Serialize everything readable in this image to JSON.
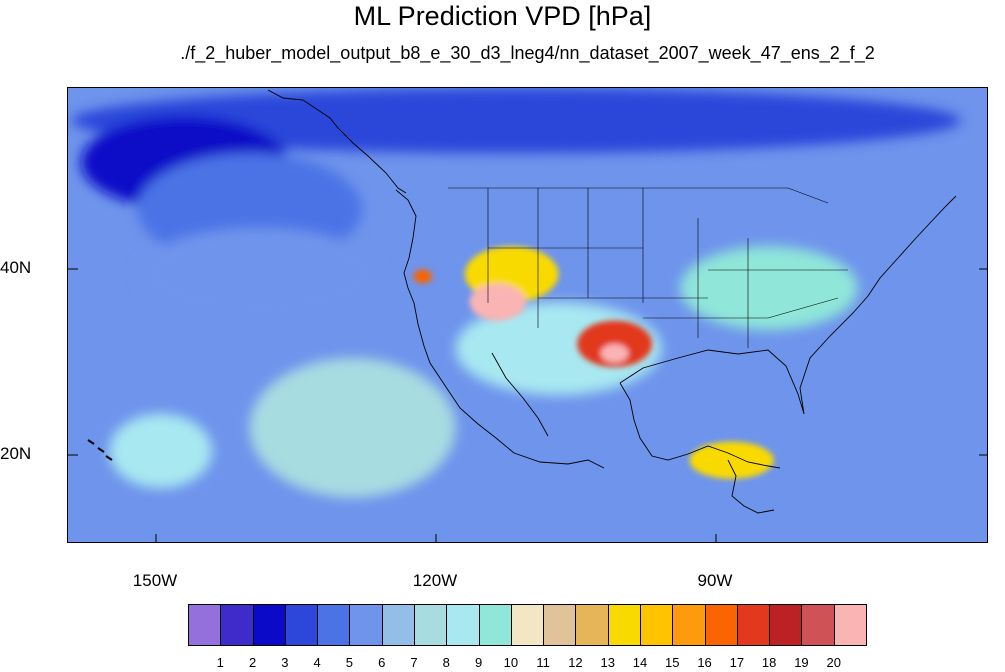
{
  "title": "ML Prediction VPD [hPa]",
  "subtitle": "./f_2_huber_model_output_b8_e_30_d3_lneg4/nn_dataset_2007_week_47_ens_2_f_2",
  "axes": {
    "lat_labels": [
      "40N",
      "20N"
    ],
    "lon_labels": [
      "150W",
      "120W",
      "90W"
    ]
  },
  "colorbar": {
    "labels": [
      "1",
      "2",
      "3",
      "4",
      "5",
      "6",
      "7",
      "8",
      "9",
      "10",
      "11",
      "12",
      "13",
      "14",
      "15",
      "16",
      "17",
      "18",
      "19",
      "20"
    ],
    "colors": [
      "#9370DB",
      "#3D2CC9",
      "#0A0AC8",
      "#2C47DA",
      "#4B73E6",
      "#6E94EC",
      "#92BEE8",
      "#A7DCE1",
      "#A8E8F1",
      "#8FE6D9",
      "#F3E6C2",
      "#E1C39A",
      "#E6B55A",
      "#F9DA00",
      "#FFC300",
      "#FD9A0E",
      "#FA6402",
      "#E2391E",
      "#BB2125",
      "#CF5257",
      "#FAB4B4"
    ]
  },
  "chart_data": {
    "type": "heatmap",
    "title": "ML Prediction VPD [hPa]",
    "subtitle": "./f_2_huber_model_output_b8_e_30_d3_lneg4/nn_dataset_2007_week_47_ens_2_f_2",
    "x_ticks": [
      "150W",
      "120W",
      "90W"
    ],
    "y_ticks": [
      "40N",
      "20N"
    ],
    "lon_range": [
      -159.4,
      -61
    ],
    "lat_range": [
      10,
      59
    ],
    "levels": [
      1,
      2,
      3,
      4,
      5,
      6,
      7,
      8,
      9,
      10,
      11,
      12,
      13,
      14,
      15,
      16,
      17,
      18,
      19,
      20
    ],
    "background_value": 6,
    "regions": [
      {
        "lon": [
          -159,
          -64
        ],
        "lat": [
          52,
          59
        ],
        "value": 3
      },
      {
        "lon": [
          -158,
          -136
        ],
        "lat": [
          46,
          56
        ],
        "value": 2
      },
      {
        "lon": [
          -152,
          -128
        ],
        "lat": [
          40,
          52
        ],
        "value": 4
      },
      {
        "lon": [
          -152,
          -126
        ],
        "lat": [
          34,
          44
        ],
        "value": 5
      },
      {
        "lon": [
          -140,
          -118
        ],
        "lat": [
          15,
          30
        ],
        "value": 7
      },
      {
        "lon": [
          -155,
          -144
        ],
        "lat": [
          16,
          24
        ],
        "value": 8
      },
      {
        "lon": [
          -118,
          -96
        ],
        "lat": [
          26,
          36
        ],
        "value": 8
      },
      {
        "lon": [
          -94,
          -75
        ],
        "lat": [
          33,
          42
        ],
        "value": 9
      },
      {
        "lon": [
          -93,
          -84
        ],
        "lat": [
          17,
          21
        ],
        "value": 13
      },
      {
        "lon": [
          -117,
          -107
        ],
        "lat": [
          36,
          42
        ],
        "value": 13
      },
      {
        "lon": [
          -116.5,
          -110.5
        ],
        "lat": [
          34,
          38
        ],
        "value": 20
      },
      {
        "lon": [
          -105,
          -97
        ],
        "lat": [
          29,
          34
        ],
        "value": 17
      },
      {
        "lon": [
          -102.5,
          -99.5
        ],
        "lat": [
          29.5,
          31.5
        ],
        "value": 20
      },
      {
        "lon": [
          -122.5,
          -120.5
        ],
        "lat": [
          38,
          39.5
        ],
        "value": 16
      }
    ]
  }
}
